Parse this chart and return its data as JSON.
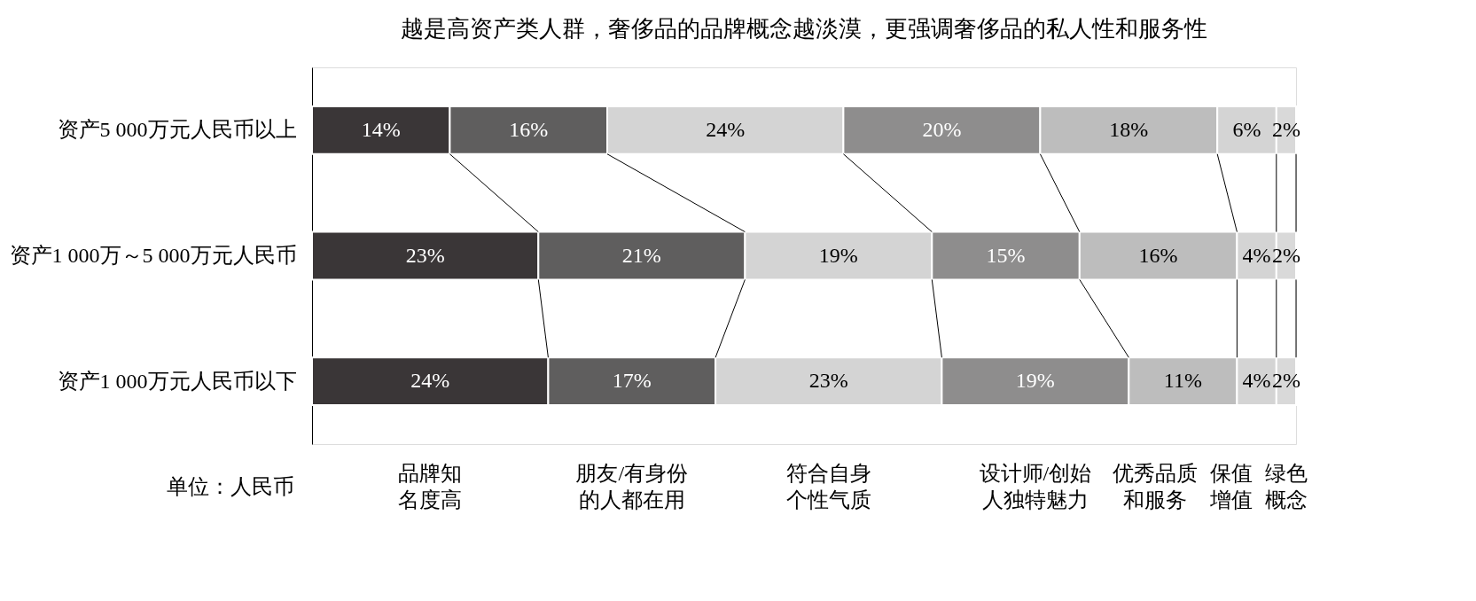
{
  "chart_data": {
    "type": "bar",
    "orientation": "horizontal",
    "stacked": true,
    "title": "越是高资产类人群，奢侈品的品牌概念越淡漠，更强调奢侈品的私人性和服务性",
    "categories": [
      "资产5 000万元人民币以上",
      "资产1 000万～5 000万元人民币",
      "资产1 000万元人民币以下"
    ],
    "series": [
      {
        "name": "品牌知名度高",
        "color": "#3a3637",
        "values": [
          14,
          23,
          24
        ],
        "value_labels": [
          "14%",
          "23%",
          "24%"
        ]
      },
      {
        "name": "朋友/有身份的人都在用",
        "color": "#5f5e5e",
        "values": [
          16,
          21,
          17
        ],
        "value_labels": [
          "16%",
          "21%",
          "17%"
        ]
      },
      {
        "name": "符合自身个性气质",
        "color": "#d4d4d4",
        "values": [
          24,
          19,
          23
        ],
        "value_labels": [
          "24%",
          "19%",
          "23%"
        ]
      },
      {
        "name": "设计师/创始人独特魅力",
        "color": "#8e8d8d",
        "values": [
          20,
          15,
          19
        ],
        "value_labels": [
          "20%",
          "15%",
          "19%"
        ]
      },
      {
        "name": "优秀品质和服务",
        "color": "#bdbdbd",
        "values": [
          18,
          16,
          11
        ],
        "value_labels": [
          "18%",
          "16%",
          "11%"
        ]
      },
      {
        "name": "保值增值",
        "color": "#d4d4d4",
        "values": [
          6,
          4,
          4
        ],
        "value_labels": [
          "6%",
          "4%",
          "4%"
        ]
      },
      {
        "name": "绿色概念",
        "color": "#d9d9d9",
        "values": [
          2,
          2,
          2
        ],
        "value_labels": [
          "2%",
          "2%",
          "2%"
        ]
      }
    ],
    "legend": "bottom",
    "annotations": [
      "单位：人民币"
    ]
  }
}
